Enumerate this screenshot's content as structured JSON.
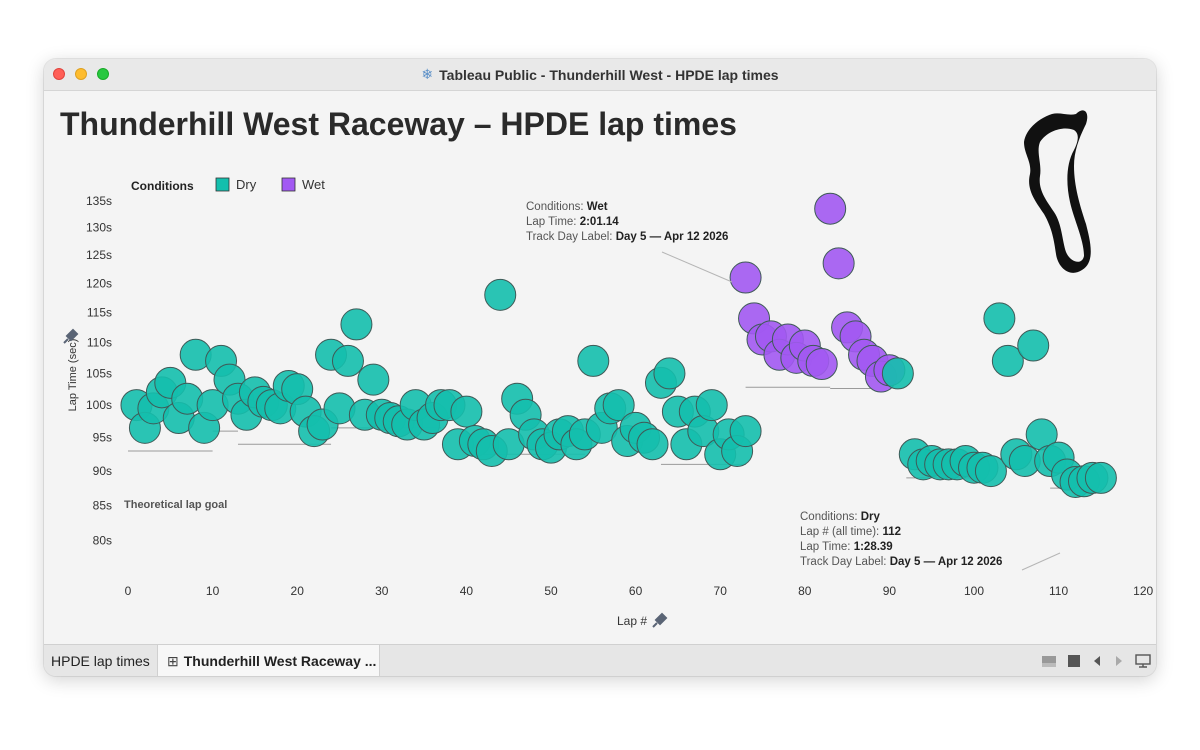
{
  "window": {
    "title": "Tableau Public - Thunderhill West - HPDE lap times",
    "app_icon": "tableau-snowflake-icon"
  },
  "dashboard": {
    "title": "Thunderhill West Raceway – HPDE lap times",
    "track_map_icon": "track-outline-icon"
  },
  "legend": {
    "title": "Conditions",
    "items": [
      {
        "label": "Dry",
        "color": "#14bfad"
      },
      {
        "label": "Wet",
        "color": "#a259f2"
      }
    ]
  },
  "goal_label": "Theoretical lap goal",
  "tooltips": [
    {
      "lines": [
        {
          "k": "Conditions: ",
          "v": "Wet"
        },
        {
          "k": "Lap Time: ",
          "v": "2:01.14"
        },
        {
          "k": "Track Day Label: ",
          "v": "Day 5 — Apr 12 2026"
        }
      ]
    },
    {
      "lines": [
        {
          "k": "Conditions: ",
          "v": "Dry"
        },
        {
          "k": "Lap # (all time): ",
          "v": "112"
        },
        {
          "k": "Lap Time: ",
          "v": "1:28.39"
        },
        {
          "k": "Track Day Label: ",
          "v": "Day 5 — Apr 12 2026"
        }
      ]
    }
  ],
  "tabs": [
    {
      "label": "HPDE lap times",
      "active": false
    },
    {
      "label": "Thunderhill West Raceway ...",
      "active": true,
      "icon": "dashboard-grid-icon"
    }
  ],
  "toolbar_icons": [
    "layout-icon",
    "stop-icon",
    "prev-icon",
    "next-icon",
    "presentation-icon"
  ],
  "chart_data": {
    "type": "scatter",
    "xlabel": "Lap #",
    "ylabel": "Lap Time (sec)",
    "xlim": [
      0,
      120
    ],
    "ylim": [
      80,
      136
    ],
    "x_ticks": [
      0,
      10,
      20,
      30,
      40,
      50,
      60,
      70,
      80,
      90,
      100,
      110,
      120
    ],
    "y_ticks": [
      80,
      85,
      90,
      95,
      100,
      105,
      110,
      115,
      120,
      125,
      130,
      135
    ],
    "y_tick_suffix": "s",
    "grid": false,
    "legend_position": "top-left",
    "series": [
      {
        "name": "Dry",
        "color": "#14bfad",
        "points": [
          [
            1,
            100
          ],
          [
            2,
            96.5
          ],
          [
            3,
            99.5
          ],
          [
            4,
            102
          ],
          [
            5,
            103.5
          ],
          [
            6,
            98
          ],
          [
            7,
            101
          ],
          [
            8,
            108
          ],
          [
            9,
            96.5
          ],
          [
            10,
            100
          ],
          [
            11,
            107
          ],
          [
            12,
            104
          ],
          [
            13,
            101
          ],
          [
            14,
            98.5
          ],
          [
            15,
            102
          ],
          [
            16,
            100.5
          ],
          [
            17,
            100
          ],
          [
            18,
            99.5
          ],
          [
            19,
            103
          ],
          [
            20,
            102.5
          ],
          [
            21,
            99
          ],
          [
            22,
            96
          ],
          [
            23,
            97
          ],
          [
            24,
            108
          ],
          [
            25,
            99.5
          ],
          [
            26,
            107
          ],
          [
            27,
            113
          ],
          [
            28,
            98.5
          ],
          [
            29,
            104
          ],
          [
            30,
            98.5
          ],
          [
            31,
            98
          ],
          [
            32,
            97.5
          ],
          [
            33,
            97
          ],
          [
            34,
            100
          ],
          [
            35,
            97
          ],
          [
            36,
            98
          ],
          [
            37,
            100
          ],
          [
            38,
            100
          ],
          [
            39,
            94
          ],
          [
            40,
            99
          ],
          [
            41,
            94.5
          ],
          [
            42,
            94
          ],
          [
            43,
            93
          ],
          [
            44,
            118
          ],
          [
            45,
            94
          ],
          [
            46,
            101
          ],
          [
            47,
            98.5
          ],
          [
            48,
            95.5
          ],
          [
            49,
            94
          ],
          [
            50,
            93.5
          ],
          [
            51,
            95.5
          ],
          [
            52,
            96
          ],
          [
            53,
            94
          ],
          [
            54,
            95.5
          ],
          [
            55,
            107
          ],
          [
            56,
            96.5
          ],
          [
            57,
            99.5
          ],
          [
            58,
            100
          ],
          [
            59,
            94.5
          ],
          [
            60,
            96.5
          ],
          [
            61,
            95
          ],
          [
            62,
            94
          ],
          [
            63,
            103.5
          ],
          [
            64,
            105
          ],
          [
            65,
            99
          ],
          [
            66,
            94
          ],
          [
            67,
            99
          ],
          [
            68,
            96
          ],
          [
            69,
            100
          ],
          [
            70,
            92.5
          ],
          [
            71,
            95.5
          ],
          [
            72,
            93
          ],
          [
            73,
            96
          ]
        ]
      },
      {
        "name": "Wet",
        "color": "#a259f2",
        "points": [
          [
            73,
            121
          ],
          [
            74,
            114
          ],
          [
            75,
            110.5
          ],
          [
            76,
            111
          ],
          [
            77,
            108
          ],
          [
            78,
            110.5
          ],
          [
            79,
            107.5
          ],
          [
            80,
            109.5
          ],
          [
            81,
            107
          ],
          [
            82,
            106.5
          ],
          [
            83,
            133.5
          ],
          [
            84,
            123.5
          ],
          [
            85,
            112.5
          ],
          [
            86,
            111
          ],
          [
            87,
            108
          ],
          [
            88,
            107
          ],
          [
            89,
            104.5
          ],
          [
            90,
            105.5
          ]
        ]
      },
      {
        "name": "Dry",
        "color": "#14bfad",
        "points": [
          [
            91,
            105
          ],
          [
            93,
            92.5
          ],
          [
            94,
            91
          ],
          [
            95,
            91.5
          ],
          [
            96,
            91
          ],
          [
            97,
            91
          ],
          [
            98,
            91
          ],
          [
            99,
            91.5
          ],
          [
            100,
            90.5
          ],
          [
            101,
            90.5
          ],
          [
            102,
            90
          ],
          [
            103,
            114
          ],
          [
            104,
            107
          ],
          [
            105,
            92.5
          ],
          [
            106,
            91.5
          ],
          [
            107,
            109.5
          ],
          [
            108,
            95.5
          ],
          [
            109,
            91.5
          ],
          [
            110,
            92
          ],
          [
            111,
            89.5
          ],
          [
            112,
            88.4
          ],
          [
            113,
            88.5
          ],
          [
            114,
            89
          ],
          [
            115,
            89
          ]
        ]
      }
    ],
    "reference_lines": [
      {
        "from": 0,
        "to": 10,
        "y": 93
      },
      {
        "from": 10,
        "to": 13,
        "y": 96
      },
      {
        "from": 13,
        "to": 24,
        "y": 94
      },
      {
        "from": 24,
        "to": 37,
        "y": 96.5
      },
      {
        "from": 41,
        "to": 54,
        "y": 92.5
      },
      {
        "from": 63,
        "to": 73,
        "y": 91
      },
      {
        "from": 73,
        "to": 83,
        "y": 102.8
      },
      {
        "from": 83,
        "to": 88,
        "y": 102.6
      },
      {
        "from": 92,
        "to": 101,
        "y": 89
      },
      {
        "from": 109,
        "to": 112,
        "y": 87.5
      }
    ]
  }
}
